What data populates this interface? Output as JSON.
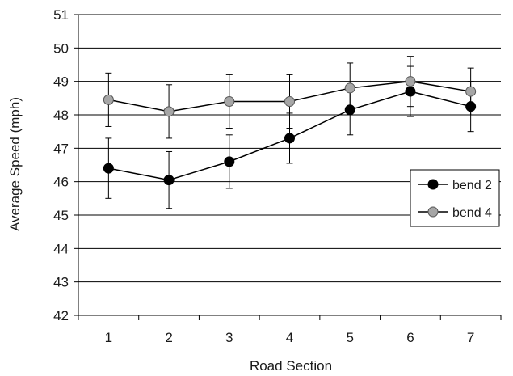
{
  "chart_data": {
    "type": "line",
    "title": "",
    "xlabel": "Road Section",
    "ylabel": "Average Speed (mph)",
    "categories": [
      "1",
      "2",
      "3",
      "4",
      "5",
      "6",
      "7"
    ],
    "ylim": [
      42,
      51
    ],
    "yticks": [
      "42",
      "43",
      "44",
      "45",
      "46",
      "47",
      "48",
      "49",
      "50",
      "51"
    ],
    "grid": "horizontal",
    "legend_position": "right",
    "series": [
      {
        "name": "bend 2",
        "marker_color": "#000000",
        "values": [
          46.4,
          46.05,
          46.6,
          47.3,
          48.15,
          48.7,
          48.25
        ],
        "error": [
          0.9,
          0.85,
          0.8,
          0.75,
          0.75,
          0.75,
          0.75
        ]
      },
      {
        "name": "bend 4",
        "marker_color": "#a6a6a6",
        "values": [
          48.45,
          48.1,
          48.4,
          48.4,
          48.8,
          49.0,
          48.7
        ],
        "error": [
          0.8,
          0.8,
          0.8,
          0.8,
          0.75,
          0.75,
          0.7
        ]
      }
    ]
  }
}
